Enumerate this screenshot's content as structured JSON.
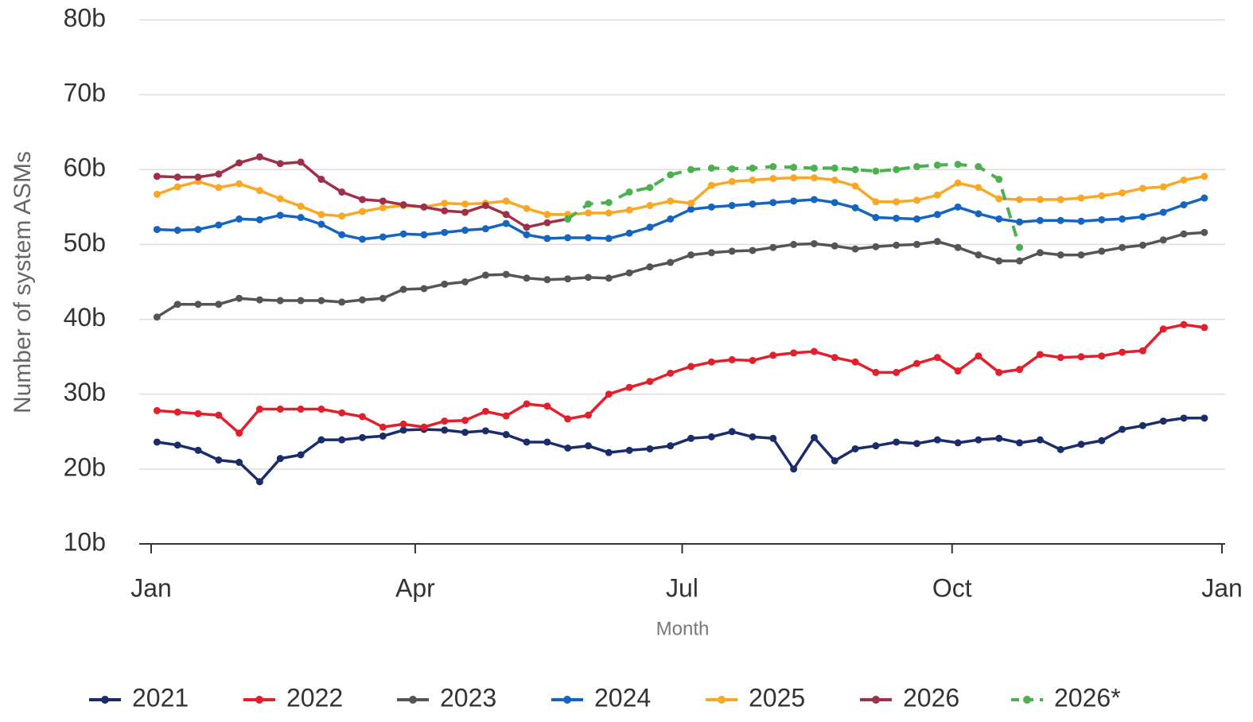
{
  "chart_data": {
    "type": "line",
    "x_label": "Month",
    "y_label": "Number of system ASMs",
    "x": [
      2,
      9,
      16,
      23,
      30,
      37,
      44,
      51,
      58,
      65,
      72,
      79,
      86,
      93,
      100,
      107,
      114,
      121,
      128,
      135,
      142,
      149,
      156,
      163,
      170,
      177,
      184,
      191,
      198,
      205,
      212,
      219,
      226,
      233,
      240,
      247,
      254,
      261,
      268,
      275,
      282,
      289,
      296,
      303,
      310,
      317,
      324,
      331,
      338,
      345,
      352,
      359
    ],
    "xlim": [
      0,
      365
    ],
    "xticks": [
      {
        "value": 0,
        "label": "Jan"
      },
      {
        "value": 90,
        "label": "Apr"
      },
      {
        "value": 181,
        "label": "Jul"
      },
      {
        "value": 273,
        "label": "Oct"
      },
      {
        "value": 365,
        "label": "Jan"
      }
    ],
    "ylim": [
      10,
      80
    ],
    "yticks": [
      {
        "value": 10,
        "label": "10b"
      },
      {
        "value": 20,
        "label": "20b"
      },
      {
        "value": 30,
        "label": "30b"
      },
      {
        "value": 40,
        "label": "40b"
      },
      {
        "value": 50,
        "label": "50b"
      },
      {
        "value": 60,
        "label": "60b"
      },
      {
        "value": 70,
        "label": "70b"
      },
      {
        "value": 80,
        "label": "80b"
      }
    ],
    "grid": true,
    "legend": "bottom",
    "series": [
      {
        "name": "2021",
        "color": "#1b2c6b",
        "values": [
          23.6,
          23.2,
          22.5,
          21.2,
          20.9,
          18.3,
          21.4,
          21.9,
          23.9,
          23.9,
          24.2,
          24.4,
          25.2,
          25.3,
          25.2,
          24.9,
          25.1,
          24.6,
          23.6,
          23.6,
          22.8,
          23.1,
          22.2,
          22.5,
          22.7,
          23.1,
          24.1,
          24.3,
          25.0,
          24.3,
          24.1,
          20.0,
          24.2,
          21.1,
          22.7,
          23.1,
          23.6,
          23.4,
          23.9,
          23.5,
          23.9,
          24.1,
          23.5,
          23.9,
          22.6,
          23.3,
          23.8,
          25.3,
          25.8,
          26.4,
          26.8,
          26.8
        ]
      },
      {
        "name": "2022",
        "color": "#e31f2b",
        "values": [
          27.8,
          27.6,
          27.4,
          27.2,
          24.8,
          28,
          28,
          28,
          28,
          27.5,
          27,
          25.6,
          26,
          25.6,
          26.4,
          26.5,
          27.7,
          27.1,
          28.7,
          28.4,
          26.7,
          27.2,
          30,
          30.9,
          31.7,
          32.8,
          33.7,
          34.3,
          34.6,
          34.5,
          35.2,
          35.5,
          35.7,
          34.9,
          34.3,
          32.9,
          32.9,
          34.1,
          34.9,
          33.1,
          35.1,
          32.9,
          33.3,
          35.3,
          34.9,
          35,
          35.1,
          35.6,
          35.8,
          38.7,
          39.3,
          38.9
        ]
      },
      {
        "name": "2023",
        "color": "#555555",
        "values": [
          40.3,
          42,
          42,
          42,
          42.8,
          42.6,
          42.5,
          42.5,
          42.5,
          42.3,
          42.6,
          42.8,
          44,
          44.1,
          44.7,
          45,
          45.9,
          46,
          45.5,
          45.3,
          45.4,
          45.6,
          45.5,
          46.2,
          47,
          47.6,
          48.6,
          48.9,
          49.1,
          49.2,
          49.6,
          50,
          50.1,
          49.8,
          49.4,
          49.7,
          49.9,
          50,
          50.4,
          49.6,
          48.6,
          47.8,
          47.8,
          48.9,
          48.6,
          48.6,
          49.1,
          49.6,
          49.9,
          50.6,
          51.4,
          51.6
        ]
      },
      {
        "name": "2024",
        "color": "#1565c0",
        "values": [
          52,
          51.9,
          52,
          52.6,
          53.4,
          53.3,
          53.9,
          53.6,
          52.7,
          51.3,
          50.7,
          51,
          51.4,
          51.3,
          51.6,
          51.9,
          52.1,
          52.8,
          51.3,
          50.8,
          50.9,
          50.9,
          50.8,
          51.5,
          52.3,
          53.4,
          54.7,
          55,
          55.2,
          55.4,
          55.6,
          55.8,
          56,
          55.6,
          54.9,
          53.6,
          53.5,
          53.4,
          54,
          55,
          54.1,
          53.4,
          53,
          53.2,
          53.2,
          53.1,
          53.3,
          53.4,
          53.7,
          54.3,
          55.3,
          56.2
        ]
      },
      {
        "name": "2025",
        "color": "#f9a825",
        "values": [
          56.7,
          57.7,
          58.4,
          57.6,
          58.1,
          57.2,
          56.1,
          55.1,
          54,
          53.8,
          54.4,
          54.9,
          55.2,
          55,
          55.5,
          55.4,
          55.5,
          55.8,
          54.8,
          54,
          54,
          54.2,
          54.2,
          54.6,
          55.2,
          55.8,
          55.5,
          57.9,
          58.4,
          58.6,
          58.8,
          58.9,
          58.9,
          58.6,
          57.8,
          55.7,
          55.7,
          55.9,
          56.6,
          58.2,
          57.6,
          56.1,
          56,
          56,
          56,
          56.2,
          56.5,
          56.9,
          57.5,
          57.7,
          58.6,
          59.1
        ]
      },
      {
        "name": "2026",
        "color": "#9e3049",
        "values": [
          59.1,
          59,
          59,
          59.4,
          60.9,
          61.7,
          60.8,
          61,
          58.7,
          57,
          56,
          55.8,
          55.3,
          55,
          54.5,
          54.3,
          55.2,
          54,
          52.3,
          52.9,
          53.4,
          null,
          null,
          null,
          null,
          null,
          null,
          null,
          null,
          null,
          null,
          null,
          null,
          null,
          null,
          null,
          null,
          null,
          null,
          null,
          null,
          null,
          null,
          null,
          null,
          null,
          null,
          null,
          null,
          null,
          null,
          null
        ]
      },
      {
        "name": "2026*",
        "color": "#4cb050",
        "dashed": true,
        "values": [
          null,
          null,
          null,
          null,
          null,
          null,
          null,
          null,
          null,
          null,
          null,
          null,
          null,
          null,
          null,
          null,
          null,
          null,
          null,
          null,
          53.4,
          55.4,
          55.6,
          57,
          57.6,
          59.3,
          60,
          60.2,
          60.1,
          60.2,
          60.4,
          60.3,
          60.2,
          60.2,
          60,
          59.8,
          60,
          60.4,
          60.6,
          60.7,
          60.4,
          58.7,
          49.6,
          null,
          null,
          null,
          null,
          null,
          null,
          null,
          null,
          null
        ]
      }
    ]
  }
}
